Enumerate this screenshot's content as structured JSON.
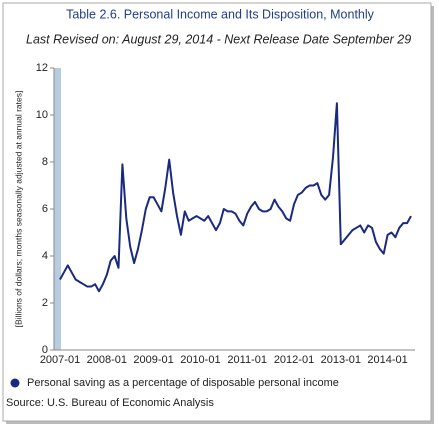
{
  "chart_data": {
    "type": "line",
    "title": "Table 2.6. Personal Income and Its Disposition, Monthly",
    "subtitle": "Last Revised on: August 29, 2014 - Next Release Date September 29",
    "y_axis_label": "[Billions of dollars; months seasonally adjusted at annual rates]",
    "source": "Source: U.S. Bureau of Economic Analysis",
    "categories": [
      "2007-01",
      null,
      null,
      null,
      null,
      null,
      null,
      null,
      null,
      null,
      null,
      null,
      "2008-01",
      null,
      null,
      null,
      null,
      null,
      null,
      null,
      null,
      null,
      null,
      null,
      "2009-01",
      null,
      null,
      null,
      null,
      null,
      null,
      null,
      null,
      null,
      null,
      null,
      "2010-01",
      null,
      null,
      null,
      null,
      null,
      null,
      null,
      null,
      null,
      null,
      null,
      "2011-01",
      null,
      null,
      null,
      null,
      null,
      null,
      null,
      null,
      null,
      null,
      null,
      "2012-01",
      null,
      null,
      null,
      null,
      null,
      null,
      null,
      null,
      null,
      null,
      null,
      "2013-01",
      null,
      null,
      null,
      null,
      null,
      null,
      null,
      null,
      null,
      null,
      null,
      "2014-01",
      null,
      null,
      null,
      null,
      null,
      null
    ],
    "series": [
      {
        "name": "Personal saving as a percentage of disposable personal income",
        "color": "#1a2a80",
        "values": [
          3.0,
          3.3,
          3.6,
          3.3,
          3.0,
          2.9,
          2.8,
          2.7,
          2.7,
          2.8,
          2.5,
          2.8,
          3.2,
          3.8,
          4.0,
          3.5,
          7.9,
          5.6,
          4.4,
          3.7,
          4.3,
          5.1,
          6.0,
          6.5,
          6.5,
          6.2,
          5.9,
          6.9,
          8.1,
          6.7,
          5.7,
          4.9,
          5.9,
          5.5,
          5.6,
          5.7,
          5.6,
          5.5,
          5.7,
          5.4,
          5.1,
          5.4,
          6.0,
          5.9,
          5.9,
          5.8,
          5.5,
          5.3,
          5.8,
          6.1,
          6.3,
          6.0,
          5.9,
          5.9,
          6.0,
          6.4,
          6.1,
          5.9,
          5.6,
          5.5,
          6.2,
          6.6,
          6.7,
          6.9,
          7.0,
          7.0,
          7.1,
          6.6,
          6.4,
          6.6,
          8.2,
          10.5,
          4.5,
          4.7,
          4.9,
          5.1,
          5.2,
          5.3,
          5.0,
          5.3,
          5.2,
          4.6,
          4.3,
          4.1,
          4.9,
          5.0,
          4.8,
          5.2,
          5.4,
          5.4,
          5.7
        ]
      }
    ],
    "ylim": [
      0,
      12
    ],
    "yticks": [
      0,
      2,
      4,
      6,
      8,
      10,
      12
    ],
    "grid": false
  }
}
